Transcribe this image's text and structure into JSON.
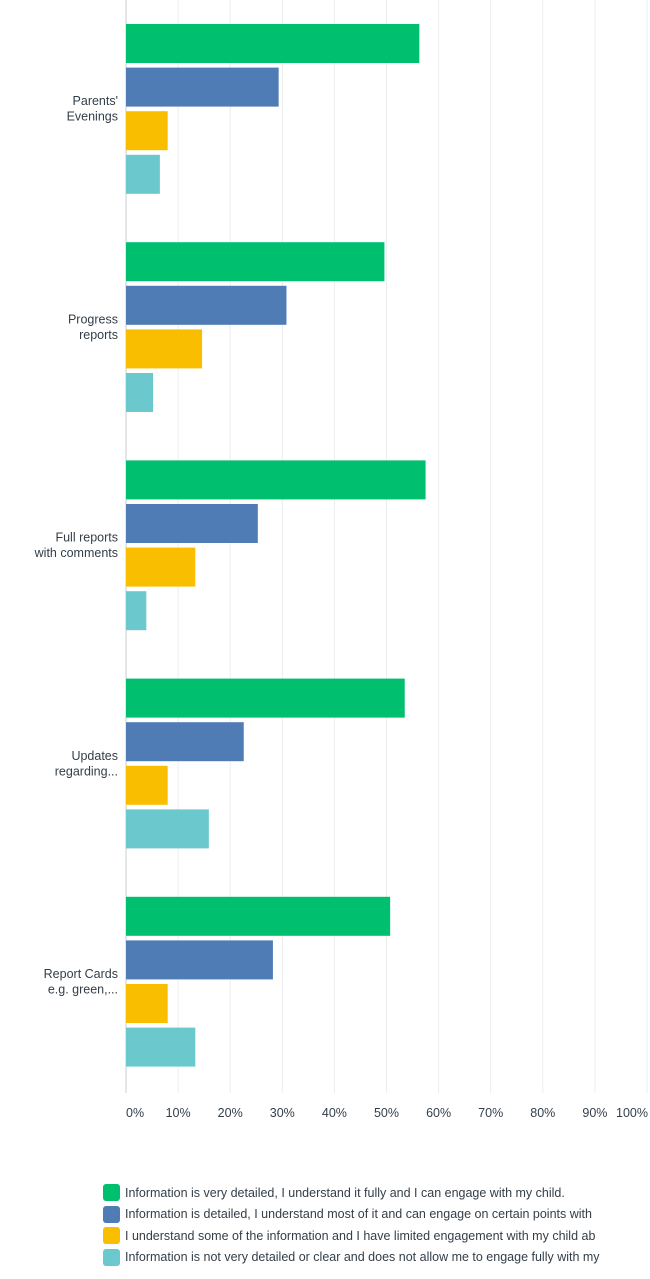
{
  "chart_data": {
    "type": "bar",
    "orientation": "horizontal",
    "categories": [
      [
        "Parents'",
        "Evenings"
      ],
      [
        "Progress",
        "reports"
      ],
      [
        "Full reports",
        "with comments"
      ],
      [
        "Updates",
        "regarding..."
      ],
      [
        "Report Cards",
        "e.g. green,..."
      ]
    ],
    "series": [
      {
        "name": "Information is very detailed, I understand it fully and I can engage with my child.",
        "color": "#00bf6f",
        "values": [
          56.3,
          49.6,
          57.5,
          53.5,
          50.7
        ]
      },
      {
        "name": "Information is detailed, I understand most of it and can engage on certain points with",
        "color": "#507cb6",
        "values": [
          29.3,
          30.8,
          25.3,
          22.6,
          28.2
        ]
      },
      {
        "name": "I understand some of the information and I have limited engagement with my child ab",
        "color": "#f9be00",
        "values": [
          8.0,
          14.6,
          13.3,
          8.0,
          8.0
        ]
      },
      {
        "name": "Information is not very detailed or clear and does not allow me to engage fully with my",
        "color": "#6bc8cd",
        "values": [
          6.5,
          5.2,
          3.9,
          15.9,
          13.3
        ]
      }
    ],
    "xlim": [
      0,
      100
    ],
    "ticks": [
      "0%",
      "10%",
      "20%",
      "30%",
      "40%",
      "50%",
      "60%",
      "70%",
      "80%",
      "90%",
      "100%"
    ],
    "grid": true,
    "legend_position": "bottom"
  }
}
